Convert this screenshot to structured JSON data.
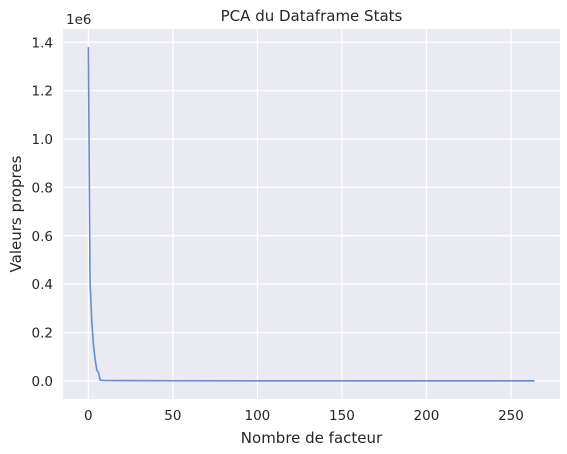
{
  "chart_data": {
    "type": "line",
    "title": "PCA du Dataframe Stats",
    "xlabel": "Nombre de facteur",
    "ylabel": "Valeurs propres",
    "y_offset_label": "1e6",
    "xlim": [
      -15,
      279
    ],
    "ylim": [
      -75000,
      1455000
    ],
    "xticks": [
      0,
      50,
      100,
      150,
      200,
      250
    ],
    "xtick_labels": [
      "0",
      "50",
      "100",
      "150",
      "200",
      "250"
    ],
    "yticks": [
      0,
      200000,
      400000,
      600000,
      800000,
      1000000,
      1200000,
      1400000
    ],
    "ytick_labels": [
      "0.0",
      "0.2",
      "0.4",
      "0.6",
      "0.8",
      "1.0",
      "1.2",
      "1.4"
    ],
    "grid": true,
    "style": "seaborn-darkgrid",
    "colors": {
      "background": "#eaeaf2",
      "grid": "#ffffff",
      "line": "#6b8dcb"
    },
    "series": [
      {
        "x": [
          0,
          1,
          2,
          3,
          4,
          5,
          6,
          7,
          10,
          50,
          100,
          150,
          200,
          264
        ],
        "values": [
          1380000,
          410000,
          250000,
          150000,
          90000,
          45000,
          35000,
          3000,
          1500,
          500,
          300,
          200,
          100,
          0
        ]
      }
    ]
  }
}
